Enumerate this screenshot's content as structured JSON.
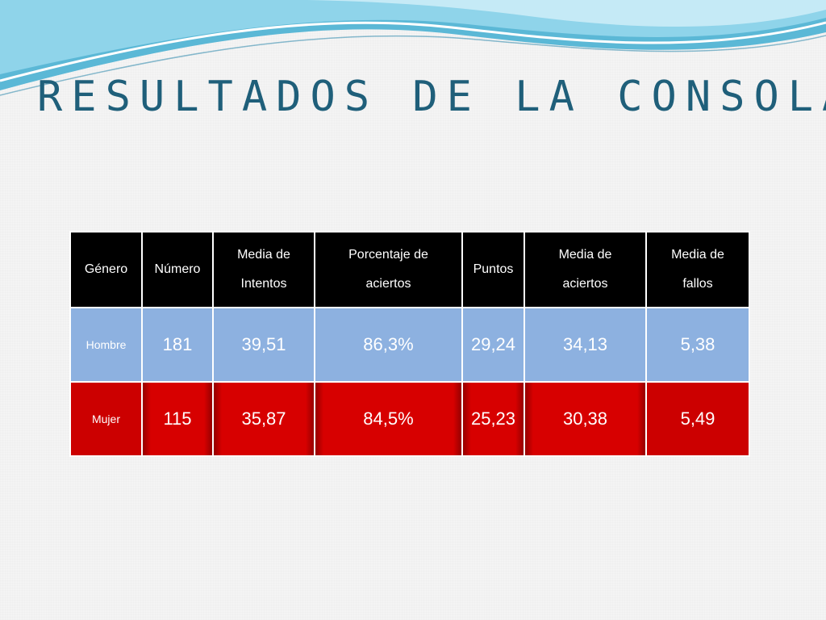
{
  "slide": {
    "title": "RESULTADOS DE LA CONSOLA",
    "colors": {
      "title": "#1f5f7a",
      "header_bg": "#000000",
      "hombre_row": "#8db1e0",
      "mujer_row": "#cc0000",
      "wave": "#5bb8d6"
    }
  },
  "table": {
    "headers": [
      "Género",
      "Número",
      "Media de Intentos",
      "Porcentaje de aciertos",
      "Puntos",
      "Media de aciertos",
      "Media de fallos"
    ],
    "rows": [
      {
        "label": "Hombre",
        "numero": "181",
        "media_intentos": "39,51",
        "porcentaje_aciertos": "86,3%",
        "puntos": "29,24",
        "media_aciertos": "34,13",
        "media_fallos": "5,38"
      },
      {
        "label": "Mujer",
        "numero": "115",
        "media_intentos": "35,87",
        "porcentaje_aciertos": "84,5%",
        "puntos": "25,23",
        "media_aciertos": "30,38",
        "media_fallos": "5,49"
      }
    ]
  }
}
